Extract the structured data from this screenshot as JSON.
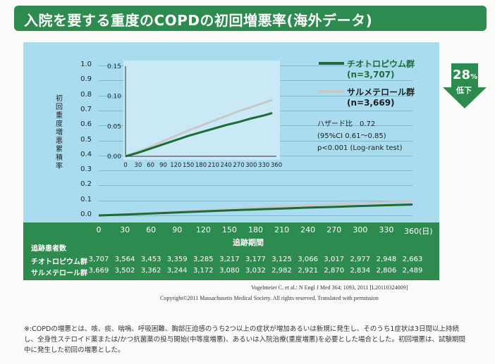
{
  "title": "入院を要する重度のCOPDの初回増悪率(海外データ)",
  "badge": {
    "value": "28",
    "unit": "%",
    "text": "低下",
    "color": "#2e8b4f"
  },
  "chart_data": [
    {
      "type": "line",
      "ylabel": "初回重度増悪累積率",
      "x_ticks": [
        "0",
        "30",
        "60",
        "90",
        "120",
        "150",
        "180",
        "210",
        "240",
        "270",
        "300",
        "330",
        "360(日)"
      ],
      "xlabel": "追跡期間",
      "y_ticks": [
        "1.0",
        "0.9",
        "0.8",
        "0.7",
        "0.6",
        "0.5",
        "0.4",
        "0.3",
        "0.2",
        "0.1",
        "0.0"
      ],
      "ylim": [
        0,
        1.0
      ],
      "xlim": [
        0,
        360
      ],
      "series": [
        {
          "name": "チオトロピウム群",
          "n": "(n=3,707)",
          "color": "#1e6b35",
          "x": [
            0,
            30,
            60,
            90,
            120,
            150,
            180,
            210,
            240,
            270,
            300,
            330,
            360
          ],
          "y": [
            0,
            0.006,
            0.013,
            0.02,
            0.027,
            0.034,
            0.04,
            0.046,
            0.052,
            0.057,
            0.063,
            0.068,
            0.073
          ]
        },
        {
          "name": "サルメテロール群",
          "n": "(n=3,669)",
          "color": "#c8c8c8",
          "x": [
            0,
            30,
            60,
            90,
            120,
            150,
            180,
            210,
            240,
            270,
            300,
            330,
            360
          ],
          "y": [
            0,
            0.008,
            0.016,
            0.025,
            0.034,
            0.043,
            0.051,
            0.059,
            0.067,
            0.075,
            0.082,
            0.089,
            0.096
          ]
        }
      ]
    },
    {
      "type": "line",
      "inset": true,
      "x_ticks": [
        "0",
        "30",
        "60",
        "90",
        "120",
        "150",
        "180",
        "210",
        "240",
        "270",
        "300",
        "330",
        "360"
      ],
      "y_ticks": [
        "0.15",
        "0.10",
        "0.05",
        "0.00"
      ],
      "ylim": [
        0,
        0.15
      ],
      "xlim": [
        0,
        360
      ],
      "series": [
        {
          "name": "チオトロピウム群",
          "color": "#1e6b35",
          "x": [
            0,
            30,
            60,
            90,
            120,
            150,
            180,
            210,
            240,
            270,
            300,
            330,
            350
          ],
          "y": [
            0,
            0.006,
            0.013,
            0.02,
            0.027,
            0.034,
            0.04,
            0.046,
            0.052,
            0.057,
            0.063,
            0.068,
            0.072
          ]
        },
        {
          "name": "サルメテロール群",
          "color": "#c8c8c8",
          "x": [
            0,
            30,
            60,
            90,
            120,
            150,
            180,
            210,
            240,
            270,
            300,
            330,
            350
          ],
          "y": [
            0,
            0.008,
            0.016,
            0.025,
            0.034,
            0.043,
            0.051,
            0.059,
            0.067,
            0.075,
            0.082,
            0.089,
            0.094
          ]
        }
      ]
    }
  ],
  "stats": {
    "line1": "ハザード比　0.72",
    "line2": "(95%CI 0.61～0.85)",
    "line3": "p<0.001 (Log-rank test)"
  },
  "risk_table": {
    "header": "追跡患者数",
    "rows": [
      {
        "label": "チオトロピウム群",
        "values": [
          "3,707",
          "3,564",
          "3,453",
          "3,359",
          "3,285",
          "3,217",
          "3,177",
          "3,125",
          "3,066",
          "3,017",
          "2,977",
          "2,948",
          "2,663"
        ]
      },
      {
        "label": "サルメテロール群",
        "values": [
          "3,669",
          "3,502",
          "3,362",
          "3,244",
          "3,172",
          "3,080",
          "3,032",
          "2,982",
          "2,921",
          "2,870",
          "2,834",
          "2,806",
          "2,489"
        ]
      }
    ]
  },
  "citation": "Vogelmeier C. et al.: N Engl J Med 364; 1093, 2011 [L20110324009]",
  "copyright": "Copyright©2011 Massachusetts Medical Society. All rights reserved. Translated with permission",
  "footnote": "※:COPDの増悪とは、咳、痰、喘鳴、呼吸困難、胸部圧迫感のうち2つ以上の症状が増加あるいは新規に発生し、そのうち1症状は3日間以上持続し、全身性ステロイド薬または/かつ抗菌薬の投与開始(中等度増悪)、あるいは入院治療(重度増悪)を必要とした場合とした。初回増悪は、試験期間中に発生した初回の増悪とした。"
}
